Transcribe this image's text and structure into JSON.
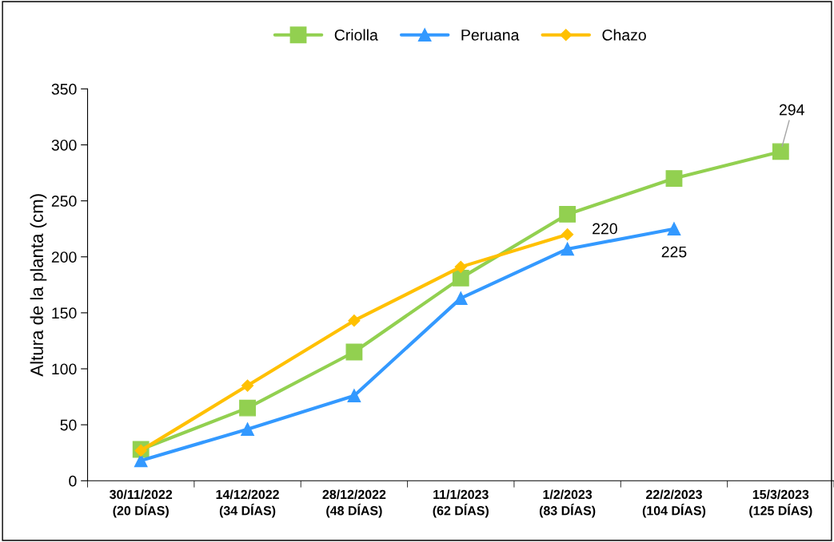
{
  "chart_data": {
    "type": "line",
    "ylabel": "Altura de la planta (cm)",
    "categories": [
      "30/11/2022\n(20 DÍAS)",
      "14/12/2022\n(34 DÍAS)",
      "28/12/2022\n(48 DÍAS)",
      "11/1/2023\n(62 DÍAS)",
      "1/2/2023\n(83 DÍAS)",
      "22/2/2023\n(104 DÍAS)",
      "15/3/2023\n(125 DÍAS)"
    ],
    "series": [
      {
        "name": "Criolla",
        "color": "#92d050",
        "marker": "square",
        "values": [
          28,
          65,
          115,
          181,
          238,
          270,
          294
        ],
        "value_labels": [
          null,
          null,
          null,
          null,
          null,
          null,
          "294"
        ]
      },
      {
        "name": "Peruana",
        "color": "#3399ff",
        "marker": "triangle",
        "values": [
          18,
          46,
          76,
          163,
          207,
          225,
          null
        ],
        "value_labels": [
          null,
          null,
          null,
          null,
          null,
          "225",
          null
        ]
      },
      {
        "name": "Chazo",
        "color": "#ffc000",
        "marker": "diamond",
        "values": [
          27,
          85,
          143,
          191,
          220,
          null,
          null
        ],
        "value_labels": [
          null,
          null,
          null,
          null,
          "220",
          null,
          null
        ]
      }
    ],
    "ylim": [
      0,
      350
    ],
    "yticks": [
      0,
      50,
      100,
      150,
      200,
      250,
      300,
      350
    ],
    "grid": false,
    "legend": "top"
  }
}
